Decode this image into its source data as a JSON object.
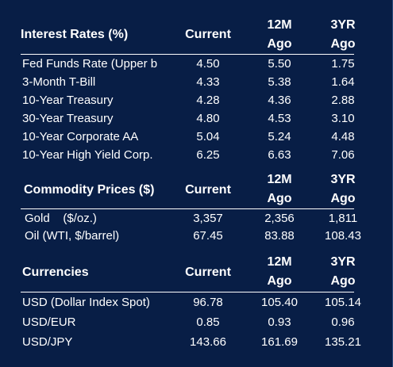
{
  "interest": {
    "title": "Interest Rates (%)",
    "col_current": "Current",
    "col_12m_top": "12M",
    "col_12m_bottom": "Ago",
    "col_3yr_top": "3YR",
    "col_3yr_bottom": "Ago",
    "rows": [
      {
        "label": "Fed Funds Rate (Upper b",
        "current": "4.50",
        "m12": "5.50",
        "y3": "1.75"
      },
      {
        "label": "3-Month T-Bill",
        "current": "4.33",
        "m12": "5.38",
        "y3": "1.64"
      },
      {
        "label": "10-Year Treasury",
        "current": "4.28",
        "m12": "4.36",
        "y3": "2.88"
      },
      {
        "label": "30-Year Treasury",
        "current": "4.80",
        "m12": "4.53",
        "y3": "3.10"
      },
      {
        "label": "10-Year Corporate AA",
        "current": "5.04",
        "m12": "5.24",
        "y3": "4.48"
      },
      {
        "label": "10-Year High Yield Corp.",
        "current": "6.25",
        "m12": "6.63",
        "y3": "7.06"
      }
    ]
  },
  "commodity": {
    "title": "Commodity Prices ($)",
    "col_current": "Current",
    "col_12m_top": "12M",
    "col_12m_bottom": "Ago",
    "col_3yr_top": "3YR",
    "col_3yr_bottom": "Ago",
    "rows": [
      {
        "label": "Gold    ($/oz.)",
        "current": "3,357",
        "m12": "2,356",
        "y3": "1,811"
      },
      {
        "label": "Oil (WTI, $/barrel)",
        "current": "67.45",
        "m12": "83.88",
        "y3": "108.43"
      }
    ]
  },
  "currencies": {
    "title": "Currencies",
    "col_current": "Current",
    "col_12m_top": "12M",
    "col_12m_bottom": "Ago",
    "col_3yr_top": "3YR",
    "col_3yr_bottom": "Ago",
    "rows": [
      {
        "label": "USD (Dollar Index Spot)",
        "current": "96.78",
        "m12": "105.40",
        "y3": "105.14"
      },
      {
        "label": "USD/EUR",
        "current": "0.85",
        "m12": "0.93",
        "y3": "0.96"
      },
      {
        "label": "USD/JPY",
        "current": "143.66",
        "m12": "161.69",
        "y3": "135.21"
      }
    ]
  }
}
